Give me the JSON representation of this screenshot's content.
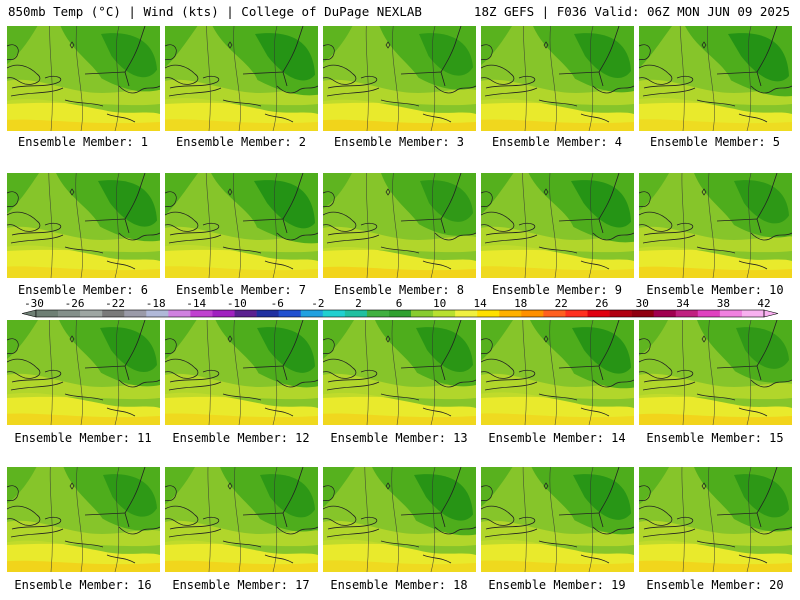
{
  "header": {
    "left": "850mb Temp (°C) | Wind (kts) | College of DuPage NEXLAB",
    "right": "18Z GEFS | F036 Valid: 06Z MON JUN 09 2025"
  },
  "panel_label_prefix": "Ensemble Member:",
  "members": [
    {
      "label": "Ensemble Member: 1",
      "cool": 0.55
    },
    {
      "label": "Ensemble Member: 2",
      "cool": 0.75
    },
    {
      "label": "Ensemble Member: 3",
      "cool": 0.45
    },
    {
      "label": "Ensemble Member: 4",
      "cool": 0.6
    },
    {
      "label": "Ensemble Member: 5",
      "cool": 0.8
    },
    {
      "label": "Ensemble Member: 6",
      "cool": 0.7
    },
    {
      "label": "Ensemble Member: 7",
      "cool": 0.8
    },
    {
      "label": "Ensemble Member: 8",
      "cool": 0.4
    },
    {
      "label": "Ensemble Member: 9",
      "cool": 0.75
    },
    {
      "label": "Ensemble Member: 10",
      "cool": 0.5
    },
    {
      "label": "Ensemble Member: 11",
      "cool": 0.6
    },
    {
      "label": "Ensemble Member: 12",
      "cool": 0.65
    },
    {
      "label": "Ensemble Member: 13",
      "cool": 0.6
    },
    {
      "label": "Ensemble Member: 14",
      "cool": 0.7
    },
    {
      "label": "Ensemble Member: 15",
      "cool": 0.4
    },
    {
      "label": "Ensemble Member: 16",
      "cool": 0.45
    },
    {
      "label": "Ensemble Member: 17",
      "cool": 0.5
    },
    {
      "label": "Ensemble Member: 18",
      "cool": 0.7
    },
    {
      "label": "Ensemble Member: 19",
      "cool": 0.65
    },
    {
      "label": "Ensemble Member: 20",
      "cool": 0.5
    }
  ],
  "colorbar": {
    "tick_labels": [
      "-30",
      "-26",
      "-22",
      "-18",
      "-14",
      "-10",
      "-6",
      "-2",
      "2",
      "6",
      "10",
      "14",
      "18",
      "22",
      "26",
      "30",
      "34",
      "38",
      "42"
    ],
    "colors": [
      "#6e7f74",
      "#84908a",
      "#9ea6a2",
      "#7a7a7a",
      "#9a9aa8",
      "#b0b8d8",
      "#d080e0",
      "#c040d0",
      "#a020c0",
      "#5a2090",
      "#2030a0",
      "#2050d0",
      "#20a0e0",
      "#20d0d0",
      "#20c0a0",
      "#40b040",
      "#30a030",
      "#88cc30",
      "#b8e030",
      "#f0f040",
      "#ffe000",
      "#ffb000",
      "#ff9000",
      "#ff6020",
      "#ff3020",
      "#e00010",
      "#b00010",
      "#900010",
      "#a00050",
      "#c02080",
      "#e040c0",
      "#f080e0",
      "#f8b0f0"
    ],
    "field_colors": {
      "dark_green": "#1f8f14",
      "green": "#4ead1c",
      "light_green": "#86c52a",
      "yellow_green": "#b9d82c",
      "yellow": "#e9ea2c",
      "gold": "#f6c812"
    }
  }
}
